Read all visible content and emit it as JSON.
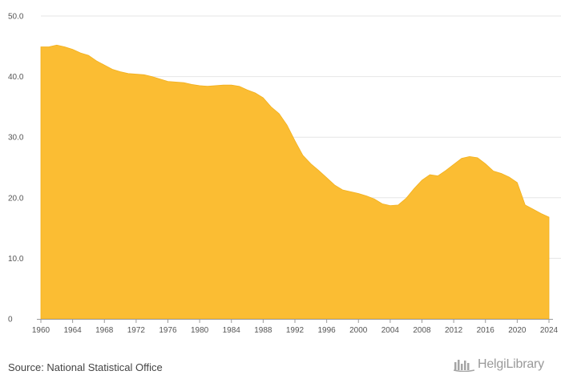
{
  "chart_data": {
    "type": "area",
    "title": "",
    "xlabel": "",
    "ylabel": "",
    "color": "#fbbd33",
    "xlim": [
      1960,
      2024
    ],
    "ylim": [
      0,
      50
    ],
    "y_ticks": [
      "0",
      "10.0",
      "20.0",
      "30.0",
      "40.0",
      "50.0"
    ],
    "x_ticks": [
      "1960",
      "1964",
      "1968",
      "1972",
      "1976",
      "1980",
      "1984",
      "1988",
      "1992",
      "1996",
      "2000",
      "2004",
      "2008",
      "2012",
      "2016",
      "2020",
      "2024"
    ],
    "grid": true,
    "x": [
      1960,
      1961,
      1962,
      1963,
      1964,
      1965,
      1966,
      1967,
      1968,
      1969,
      1970,
      1971,
      1972,
      1973,
      1974,
      1975,
      1976,
      1977,
      1978,
      1979,
      1980,
      1981,
      1982,
      1983,
      1984,
      1985,
      1986,
      1987,
      1988,
      1989,
      1990,
      1991,
      1992,
      1993,
      1994,
      1995,
      1996,
      1997,
      1998,
      1999,
      2000,
      2001,
      2002,
      2003,
      2004,
      2005,
      2006,
      2007,
      2008,
      2009,
      2010,
      2011,
      2012,
      2013,
      2014,
      2015,
      2016,
      2017,
      2018,
      2019,
      2020,
      2021,
      2022,
      2023,
      2024
    ],
    "values": [
      44.9,
      44.9,
      45.2,
      44.9,
      44.5,
      43.9,
      43.5,
      42.6,
      41.9,
      41.2,
      40.8,
      40.5,
      40.4,
      40.3,
      40.0,
      39.6,
      39.2,
      39.1,
      39.0,
      38.7,
      38.5,
      38.4,
      38.5,
      38.6,
      38.6,
      38.4,
      37.8,
      37.3,
      36.5,
      35.0,
      33.9,
      32.0,
      29.4,
      27.0,
      25.6,
      24.5,
      23.3,
      22.1,
      21.3,
      21.0,
      20.7,
      20.3,
      19.8,
      19.0,
      18.7,
      18.8,
      19.9,
      21.5,
      22.9,
      23.8,
      23.6,
      24.5,
      25.5,
      26.5,
      26.8,
      26.6,
      25.6,
      24.4,
      24.0,
      23.4,
      22.5,
      18.8,
      18.1,
      17.4,
      16.8
    ]
  },
  "footer": {
    "source": "Source: National Statistical Office",
    "logo_text": "HelgiLibrary",
    "logo_icon": "bars-library-icon"
  }
}
